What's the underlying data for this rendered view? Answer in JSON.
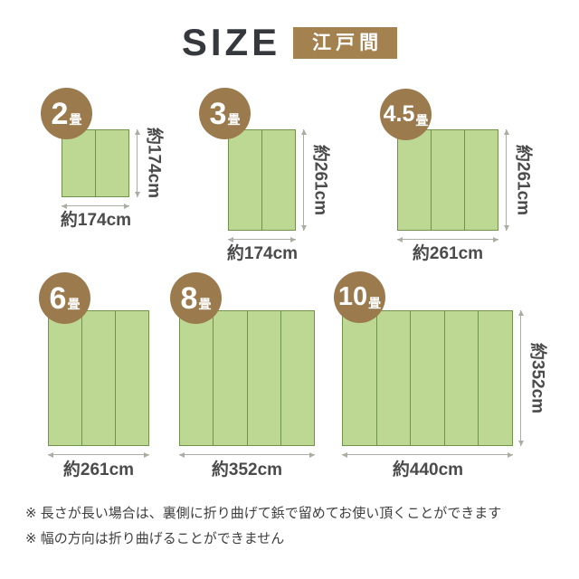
{
  "header": {
    "title": "SIZE",
    "standard_badge": "江戸間"
  },
  "colors": {
    "badge_brown": "#a38250",
    "circle_brown": "#9b7b4e",
    "mat_green": "#bdd892",
    "mat_border_green": "#71924a",
    "dimension_text": "#4b4b4b",
    "arrow_gray": "#a9aea2",
    "title_text": "#35383c"
  },
  "sizes": [
    {
      "name": "2畳",
      "badge_number": "2",
      "badge_unit": "畳",
      "panels": 2,
      "width_label": "約174cm",
      "height_label": "約174cm"
    },
    {
      "name": "3畳",
      "badge_number": "3",
      "badge_unit": "畳",
      "panels": 2,
      "width_label": "約174cm",
      "height_label": "約261cm"
    },
    {
      "name": "4.5畳",
      "badge_number": "4.5",
      "badge_unit": "畳",
      "panels": 3,
      "width_label": "約261cm",
      "height_label": "約261cm"
    },
    {
      "name": "6畳",
      "badge_number": "6",
      "badge_unit": "畳",
      "panels": 3,
      "width_label": "約261cm",
      "height_label": ""
    },
    {
      "name": "8畳",
      "badge_number": "8",
      "badge_unit": "畳",
      "panels": 4,
      "width_label": "約352cm",
      "height_label": ""
    },
    {
      "name": "10畳",
      "badge_number": "10",
      "badge_unit": "畳",
      "panels": 5,
      "width_label": "約440cm",
      "height_label": "約352cm"
    }
  ],
  "notes": [
    "※ 長さが長い場合は、裏側に折り曲げて鋲で留めてお使い頂くことができます",
    "※ 幅の方向は折り曲げることができません"
  ]
}
